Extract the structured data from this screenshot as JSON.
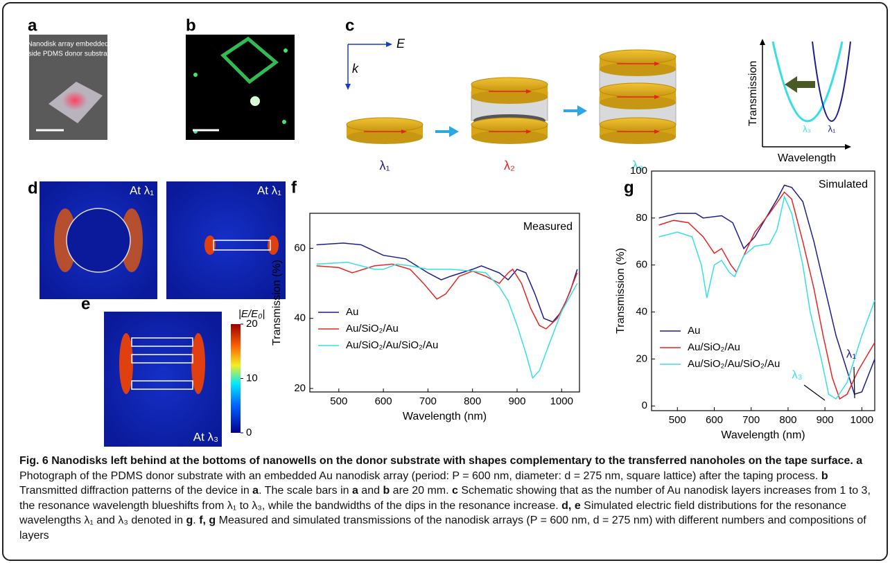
{
  "panels": {
    "a": {
      "label": "a",
      "caption": [
        "Nanodisk array embedded",
        "inside PDMS donor substrate"
      ]
    },
    "b": {
      "label": "b"
    },
    "c": {
      "label": "c",
      "e_label": "E",
      "k_label": "k",
      "lambdas": [
        "λ₁",
        "λ₂",
        "λ₃"
      ],
      "inset": {
        "ylabel": "Transmission",
        "xlabel": "Wavelength",
        "lambdas": [
          "λ₃",
          "λ₁"
        ]
      }
    },
    "d": {
      "label": "d",
      "notes": [
        "At λ₁",
        "At λ₁"
      ]
    },
    "e": {
      "label": "e",
      "note": "At λ₃"
    }
  },
  "colorbar": {
    "label": "|E/E₀|",
    "ylim": [
      0,
      20
    ],
    "yticks": [
      20,
      10,
      0
    ]
  },
  "chart_data": [
    {
      "type": "line",
      "panel": "f",
      "annotation": "Measured",
      "xlabel": "Wavelength (nm)",
      "ylabel": "Transmission (%)",
      "xlim": [
        435,
        1040
      ],
      "ylim": [
        19,
        70
      ],
      "xticks": [
        500,
        600,
        700,
        800,
        900,
        1000
      ],
      "yticks": [
        20,
        40,
        60
      ],
      "legend": "lower left",
      "series": [
        {
          "name": "Au",
          "color": "#1c1c8e",
          "x": [
            450,
            510,
            550,
            600,
            650,
            700,
            730,
            750,
            800,
            820,
            860,
            880,
            900,
            920,
            940,
            960,
            980,
            1000,
            1020,
            1035
          ],
          "values": [
            61,
            61.5,
            61,
            58,
            57,
            53,
            51,
            52,
            54,
            55,
            53,
            51,
            54,
            53,
            47,
            40,
            39,
            42,
            48,
            54
          ]
        },
        {
          "name": "Au/SiO₂/Au",
          "color": "#e8231f",
          "x": [
            450,
            500,
            530,
            580,
            620,
            660,
            690,
            720,
            740,
            770,
            800,
            830,
            860,
            880,
            890,
            910,
            930,
            950,
            965,
            990,
            1010,
            1035
          ],
          "values": [
            55,
            54.5,
            53,
            55,
            55.5,
            54,
            50,
            45.5,
            47,
            52,
            53.5,
            52,
            50,
            53,
            54,
            50,
            43,
            38,
            37,
            40,
            45,
            53
          ]
        },
        {
          "name": "Au/SiO₂/Au/SiO₂/Au",
          "color": "#36dfe6",
          "x": [
            450,
            520,
            550,
            580,
            600,
            630,
            660,
            700,
            750,
            800,
            830,
            860,
            880,
            900,
            920,
            935,
            950,
            970,
            1000,
            1035
          ],
          "values": [
            55.5,
            56,
            55,
            54,
            54,
            55.5,
            55,
            54,
            54,
            53.5,
            53,
            49,
            45,
            38,
            30,
            23,
            25,
            32,
            42,
            50
          ]
        }
      ]
    },
    {
      "type": "line",
      "panel": "g",
      "annotation": "Simulated",
      "xlabel": "Wavelength (nm)",
      "ylabel": "Transmission (%)",
      "xlim": [
        430,
        1035
      ],
      "ylim": [
        -2,
        100
      ],
      "xticks": [
        500,
        600,
        700,
        800,
        900,
        1000
      ],
      "yticks": [
        0,
        20,
        40,
        60,
        80,
        100
      ],
      "legend": "lower left",
      "annotations": [
        "λ₁",
        "λ₃"
      ],
      "series": [
        {
          "name": "Au",
          "color": "#1c1c8e",
          "x": [
            450,
            500,
            550,
            570,
            620,
            650,
            680,
            710,
            740,
            770,
            790,
            810,
            840,
            870,
            900,
            930,
            960,
            980,
            1000,
            1035
          ],
          "values": [
            80,
            82,
            82,
            80,
            81,
            78,
            67,
            72,
            80,
            88,
            94,
            93,
            87,
            70,
            50,
            30,
            15,
            5,
            6,
            20
          ]
        },
        {
          "name": "Au/SiO₂/Au",
          "color": "#e8231f",
          "x": [
            450,
            490,
            530,
            570,
            600,
            620,
            645,
            660,
            680,
            710,
            750,
            790,
            810,
            840,
            870,
            895,
            920,
            940,
            960,
            990,
            1035
          ],
          "values": [
            77,
            79,
            78,
            72,
            65,
            67,
            60,
            57,
            64,
            74,
            82,
            91,
            88,
            70,
            50,
            30,
            12,
            3,
            5,
            15,
            27
          ]
        },
        {
          "name": "Au/SiO₂/Au/SiO₂/Au",
          "color": "#36dfe6",
          "x": [
            450,
            500,
            540,
            565,
            580,
            600,
            620,
            640,
            655,
            680,
            710,
            750,
            770,
            790,
            810,
            840,
            860,
            890,
            910,
            930,
            960,
            1000,
            1035
          ],
          "values": [
            72,
            74,
            72,
            60,
            46,
            60,
            62,
            57,
            55,
            64,
            68,
            69,
            75,
            89,
            82,
            60,
            40,
            20,
            5,
            3,
            10,
            30,
            45
          ]
        }
      ]
    }
  ],
  "caption": [
    {
      "text": "Fig. 6 Nanodisks left behind at the bottoms of nanowells on the donor substrate with shapes complementary to the transferred nanoholes on the tape surface.",
      "bold": true
    },
    {
      "text": " a",
      "bold": true
    },
    {
      "text": " Photograph of the PDMS donor substrate with an embedded Au nanodisk array (period: P = 600 nm, diameter: d = 275 nm, square lattice) after the taping process.",
      "bold": false
    },
    {
      "text": " b",
      "bold": true
    },
    {
      "text": " Transmitted diffraction patterns of the device in",
      "bold": false
    },
    {
      "text": " a",
      "bold": true
    },
    {
      "text": ". The scale bars in",
      "bold": false
    },
    {
      "text": " a",
      "bold": true
    },
    {
      "text": " and",
      "bold": false
    },
    {
      "text": " b",
      "bold": true
    },
    {
      "text": " are 20 mm.",
      "bold": false
    },
    {
      "text": " c",
      "bold": true
    },
    {
      "text": " Schematic showing that as the number of Au nanodisk layers increases from 1 to 3, the resonance wavelength blueshifts from λ₁ to λ₃, while the bandwidths of the dips in the resonance increase.",
      "bold": false
    },
    {
      "text": " d, e",
      "bold": true
    },
    {
      "text": " Simulated electric field distributions for the resonance wavelengths λ₁ and λ₃ denoted in",
      "bold": false
    },
    {
      "text": " g",
      "bold": true
    },
    {
      "text": ".",
      "bold": false
    },
    {
      "text": " f, g",
      "bold": true
    },
    {
      "text": " Measured and simulated transmissions of the nanodisk arrays (P = 600 nm, d = 275 nm) with different numbers and compositions of layers",
      "bold": false
    }
  ]
}
